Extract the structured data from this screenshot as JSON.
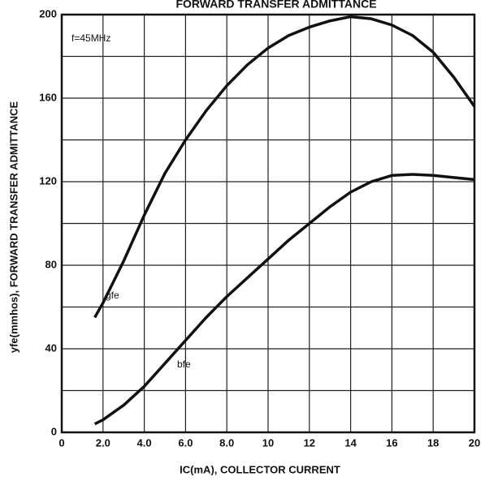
{
  "chart_data": {
    "type": "line",
    "title": "FORWARD TRANSFER ADMITTANCE",
    "xlabel": "IC(mA), COLLECTOR CURRENT",
    "ylabel": "yfe(mmhos),  FORWARD TRANSFER ADMITTANCE",
    "annotations": [
      "f=45MHz",
      "gfe",
      "bfe"
    ],
    "x": [
      1.6,
      2,
      3,
      4,
      5,
      6,
      7,
      8,
      9,
      10,
      11,
      12,
      13,
      14,
      15,
      16,
      17,
      18,
      19,
      20
    ],
    "series": [
      {
        "name": "gfe",
        "color": "#111111",
        "values": [
          55,
          62,
          82,
          104,
          124,
          140,
          154,
          166,
          176,
          184,
          190,
          194,
          197,
          199,
          198,
          195,
          190,
          182,
          170,
          156
        ]
      },
      {
        "name": "bfe",
        "color": "#111111",
        "values": [
          4,
          6,
          13,
          22,
          33,
          44,
          55,
          65,
          74,
          83,
          92,
          100,
          108,
          115,
          120,
          123,
          123.5,
          123,
          122,
          121
        ]
      }
    ],
    "xlim": [
      0,
      20
    ],
    "xticks": [
      0,
      {
        "value": 2,
        "label": "2.0"
      },
      {
        "value": 4,
        "label": "4.0"
      },
      {
        "value": 6,
        "label": "6.0"
      },
      {
        "value": 8,
        "label": "8.0"
      },
      10,
      12,
      14,
      16,
      18,
      20
    ],
    "ylim": [
      0,
      200
    ],
    "yticks": [
      0,
      40,
      80,
      120,
      160,
      200
    ],
    "y_minor_ticks": [
      20,
      60,
      100,
      140,
      180
    ],
    "grid": true
  }
}
